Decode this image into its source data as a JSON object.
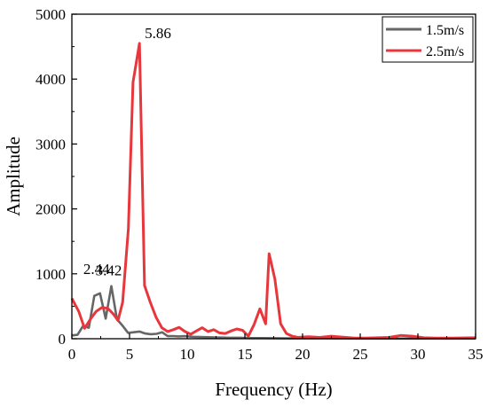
{
  "chart_data": {
    "type": "line",
    "xlabel": "Frequency (Hz)",
    "ylabel": "Amplitude",
    "xlim": [
      0,
      35
    ],
    "ylim": [
      0,
      5000
    ],
    "x_ticks": [
      "0",
      "5",
      "10",
      "15",
      "20",
      "25",
      "30",
      "35"
    ],
    "y_ticks": [
      "0",
      "1000",
      "2000",
      "3000",
      "4000",
      "5000"
    ],
    "legend_position": "top-right",
    "grid": false,
    "series": [
      {
        "name": "1.5m/s",
        "color": "#666666",
        "points": [
          [
            0,
            50
          ],
          [
            0.49,
            60
          ],
          [
            0.98,
            200
          ],
          [
            1.47,
            170
          ],
          [
            1.95,
            660
          ],
          [
            2.44,
            700
          ],
          [
            2.93,
            310
          ],
          [
            3.42,
            810
          ],
          [
            3.91,
            300
          ],
          [
            4.4,
            200
          ],
          [
            4.88,
            90
          ],
          [
            5.37,
            100
          ],
          [
            5.86,
            110
          ],
          [
            6.35,
            80
          ],
          [
            6.84,
            70
          ],
          [
            7.33,
            75
          ],
          [
            7.82,
            100
          ],
          [
            8.3,
            40
          ],
          [
            8.79,
            40
          ],
          [
            9.28,
            35
          ],
          [
            9.77,
            40
          ],
          [
            10.5,
            30
          ],
          [
            11.5,
            25
          ],
          [
            12.5,
            20
          ],
          [
            13.5,
            15
          ],
          [
            14.5,
            15
          ],
          [
            15.5,
            10
          ],
          [
            16.5,
            10
          ],
          [
            17.5,
            8
          ],
          [
            18.5,
            5
          ],
          [
            20,
            5
          ],
          [
            22,
            5
          ],
          [
            25,
            3
          ],
          [
            28,
            3
          ],
          [
            31,
            3
          ],
          [
            35,
            3
          ]
        ]
      },
      {
        "name": "2.5m/s",
        "color": "#e8373c",
        "points": [
          [
            0,
            620
          ],
          [
            0.6,
            420
          ],
          [
            1.1,
            160
          ],
          [
            1.6,
            300
          ],
          [
            2.1,
            420
          ],
          [
            2.6,
            480
          ],
          [
            3.1,
            470
          ],
          [
            3.6,
            380
          ],
          [
            4.0,
            280
          ],
          [
            4.4,
            560
          ],
          [
            4.9,
            1700
          ],
          [
            5.3,
            3950
          ],
          [
            5.86,
            4550
          ],
          [
            6.3,
            820
          ],
          [
            6.8,
            560
          ],
          [
            7.3,
            330
          ],
          [
            7.8,
            170
          ],
          [
            8.3,
            110
          ],
          [
            8.8,
            140
          ],
          [
            9.3,
            175
          ],
          [
            9.8,
            110
          ],
          [
            10.3,
            70
          ],
          [
            10.8,
            120
          ],
          [
            11.3,
            170
          ],
          [
            11.8,
            110
          ],
          [
            12.3,
            140
          ],
          [
            12.8,
            90
          ],
          [
            13.3,
            80
          ],
          [
            13.8,
            120
          ],
          [
            14.3,
            150
          ],
          [
            14.8,
            130
          ],
          [
            15.3,
            40
          ],
          [
            15.8,
            220
          ],
          [
            16.3,
            460
          ],
          [
            16.8,
            230
          ],
          [
            17.1,
            1310
          ],
          [
            17.6,
            920
          ],
          [
            18.1,
            230
          ],
          [
            18.6,
            80
          ],
          [
            19.1,
            40
          ],
          [
            19.6,
            20
          ],
          [
            20.5,
            30
          ],
          [
            21.5,
            20
          ],
          [
            22.5,
            40
          ],
          [
            23.5,
            25
          ],
          [
            24.5,
            10
          ],
          [
            25.5,
            10
          ],
          [
            26.5,
            15
          ],
          [
            27.5,
            20
          ],
          [
            28.5,
            50
          ],
          [
            29.5,
            40
          ],
          [
            30.5,
            15
          ],
          [
            31.5,
            10
          ],
          [
            33,
            10
          ],
          [
            35,
            15
          ]
        ]
      }
    ],
    "annotations": [
      {
        "text": "5.86",
        "x": 5.86,
        "y": 4550
      },
      {
        "text": "3.42",
        "x": 3.42,
        "y": 810
      },
      {
        "text": "2.44",
        "x": 2.44,
        "y": 700
      }
    ]
  }
}
